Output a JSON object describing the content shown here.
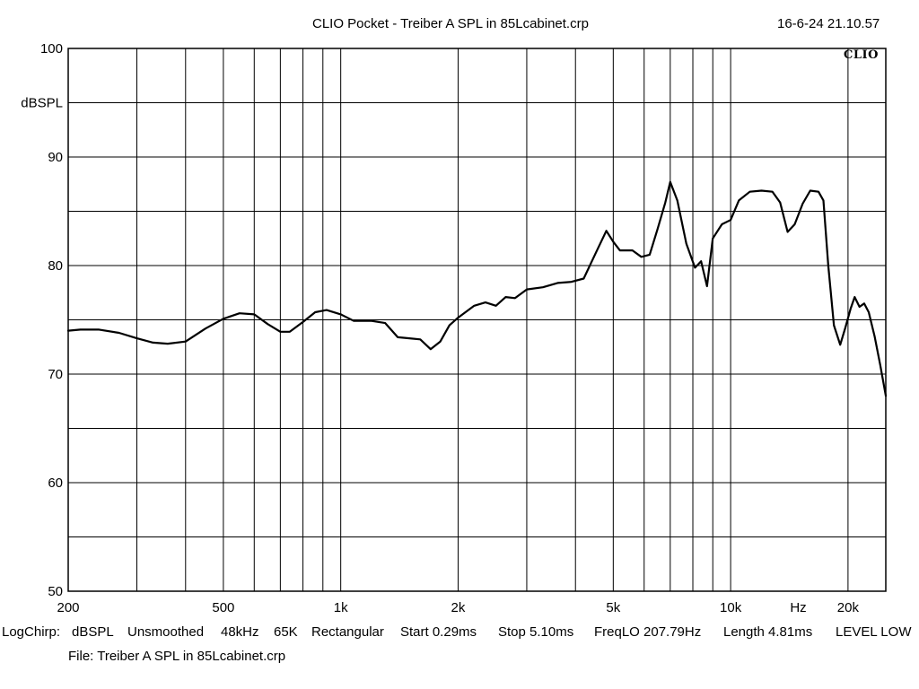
{
  "header": {
    "title": "CLIO Pocket - Treiber A SPL in 85Lcabinet.crp",
    "timestamp": "16-6-24 21.10.57",
    "brand_mark": "CLIO"
  },
  "footer": {
    "items": [
      "LogChirp:",
      "dBSPL",
      "Unsmoothed",
      "48kHz",
      "65K",
      "Rectangular",
      "Start 0.29ms",
      "Stop 5.10ms",
      "FreqLO 207.79Hz",
      "Length 4.81ms",
      "LEVEL LOW"
    ],
    "file_line": "File: Treiber A SPL in 85Lcabinet.crp"
  },
  "chart_data": {
    "type": "line",
    "title": "CLIO Pocket - Treiber A SPL in 85Lcabinet.crp",
    "xlabel": "Hz",
    "ylabel": "dBSPL",
    "x_scale": "log",
    "xlim": [
      200,
      25000
    ],
    "ylim": [
      50,
      100
    ],
    "grid": true,
    "x_ticks": [
      {
        "value": 200,
        "label": "200"
      },
      {
        "value": 500,
        "label": "500"
      },
      {
        "value": 1000,
        "label": "1k"
      },
      {
        "value": 2000,
        "label": "2k"
      },
      {
        "value": 5000,
        "label": "5k"
      },
      {
        "value": 10000,
        "label": "10k"
      },
      {
        "value": 20000,
        "label": "20k"
      }
    ],
    "x_gridlines": [
      300,
      400,
      500,
      600,
      700,
      800,
      900,
      1000,
      2000,
      3000,
      4000,
      5000,
      6000,
      7000,
      8000,
      9000,
      10000,
      20000
    ],
    "y_ticks": [
      {
        "value": 100,
        "label": "100"
      },
      {
        "value": 90,
        "label": "90"
      },
      {
        "value": 80,
        "label": "80"
      },
      {
        "value": 70,
        "label": "70"
      },
      {
        "value": 60,
        "label": "60"
      },
      {
        "value": 50,
        "label": "50"
      }
    ],
    "y_gridlines": [
      55,
      60,
      65,
      70,
      75,
      80,
      85,
      90,
      95
    ],
    "series": [
      {
        "color": "#000000",
        "points": [
          [
            200,
            74.0
          ],
          [
            215,
            74.1
          ],
          [
            240,
            74.1
          ],
          [
            270,
            73.8
          ],
          [
            300,
            73.3
          ],
          [
            330,
            72.9
          ],
          [
            360,
            72.8
          ],
          [
            400,
            73.0
          ],
          [
            450,
            74.2
          ],
          [
            500,
            75.1
          ],
          [
            550,
            75.6
          ],
          [
            600,
            75.5
          ],
          [
            650,
            74.6
          ],
          [
            700,
            73.9
          ],
          [
            740,
            73.9
          ],
          [
            800,
            74.8
          ],
          [
            860,
            75.7
          ],
          [
            920,
            75.9
          ],
          [
            1000,
            75.5
          ],
          [
            1080,
            74.9
          ],
          [
            1200,
            74.9
          ],
          [
            1300,
            74.7
          ],
          [
            1400,
            73.4
          ],
          [
            1500,
            73.3
          ],
          [
            1600,
            73.2
          ],
          [
            1700,
            72.3
          ],
          [
            1800,
            73.0
          ],
          [
            1900,
            74.5
          ],
          [
            2000,
            75.2
          ],
          [
            2200,
            76.3
          ],
          [
            2350,
            76.6
          ],
          [
            2500,
            76.3
          ],
          [
            2650,
            77.1
          ],
          [
            2800,
            77.0
          ],
          [
            3000,
            77.8
          ],
          [
            3300,
            78.0
          ],
          [
            3600,
            78.4
          ],
          [
            3900,
            78.5
          ],
          [
            4200,
            78.8
          ],
          [
            4500,
            81.1
          ],
          [
            4800,
            83.2
          ],
          [
            5000,
            82.2
          ],
          [
            5200,
            81.4
          ],
          [
            5600,
            81.4
          ],
          [
            5900,
            80.8
          ],
          [
            6200,
            81.0
          ],
          [
            6500,
            83.4
          ],
          [
            6800,
            85.8
          ],
          [
            7000,
            87.7
          ],
          [
            7300,
            86.0
          ],
          [
            7700,
            82.0
          ],
          [
            8100,
            79.8
          ],
          [
            8400,
            80.4
          ],
          [
            8700,
            78.1
          ],
          [
            9000,
            82.5
          ],
          [
            9500,
            83.8
          ],
          [
            10000,
            84.2
          ],
          [
            10500,
            86.0
          ],
          [
            11200,
            86.8
          ],
          [
            12000,
            86.9
          ],
          [
            12800,
            86.8
          ],
          [
            13400,
            85.8
          ],
          [
            14000,
            83.1
          ],
          [
            14600,
            83.8
          ],
          [
            15300,
            85.7
          ],
          [
            16000,
            86.9
          ],
          [
            16800,
            86.8
          ],
          [
            17300,
            86.0
          ],
          [
            17800,
            80.0
          ],
          [
            18400,
            74.5
          ],
          [
            19100,
            72.7
          ],
          [
            19700,
            74.3
          ],
          [
            20300,
            76.0
          ],
          [
            20800,
            77.1
          ],
          [
            21400,
            76.2
          ],
          [
            22000,
            76.5
          ],
          [
            22600,
            75.7
          ],
          [
            23400,
            73.5
          ],
          [
            24200,
            70.8
          ],
          [
            25000,
            68.0
          ]
        ]
      }
    ]
  }
}
